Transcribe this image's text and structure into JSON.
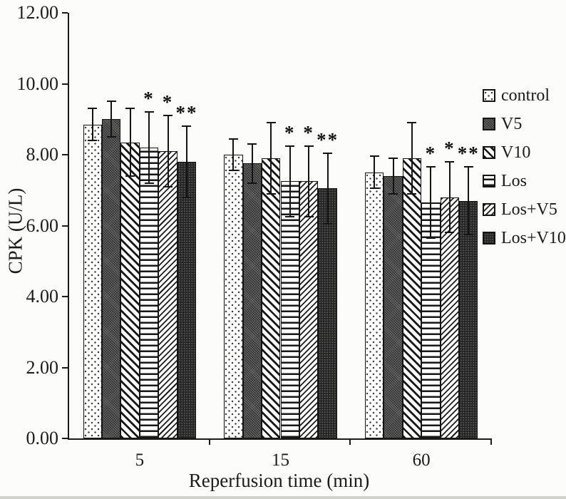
{
  "figure": {
    "background": "#fcfcfa",
    "text_color": "#1b1b1b",
    "axis_color": "#1b1b1b",
    "bar_outline_color": "#141414"
  },
  "chart_data": {
    "type": "bar",
    "title": "",
    "xlabel": "Reperfusion time (min)",
    "ylabel": "CPK (U/L)",
    "ylim": [
      0,
      12
    ],
    "ytick_values": [
      0,
      2,
      4,
      6,
      8,
      10,
      12
    ],
    "ytick_labels": [
      "0.00",
      "2.00",
      "4.00",
      "6.00",
      "8.00",
      "10.00",
      "12.00"
    ],
    "categories": [
      "5",
      "15",
      "60"
    ],
    "grid": false,
    "legend_position": "right",
    "error_bars": true,
    "series": [
      {
        "name": "control",
        "pattern": "dots",
        "values": [
          8.85,
          8.0,
          7.5
        ],
        "errors": [
          0.45,
          0.45,
          0.45
        ],
        "sig": [
          "",
          "",
          ""
        ]
      },
      {
        "name": "V5",
        "pattern": "dark-fine",
        "values": [
          9.0,
          7.75,
          7.4
        ],
        "errors": [
          0.5,
          0.55,
          0.5
        ],
        "sig": [
          "",
          "",
          ""
        ]
      },
      {
        "name": "V10",
        "pattern": "diag-back",
        "values": [
          8.35,
          7.9,
          7.9
        ],
        "errors": [
          0.95,
          1.0,
          1.0
        ],
        "sig": [
          "",
          "",
          ""
        ]
      },
      {
        "name": "Los",
        "pattern": "h-lines",
        "values": [
          8.2,
          7.25,
          6.65
        ],
        "errors": [
          1.0,
          1.0,
          1.0
        ],
        "sig": [
          "*",
          "*",
          "*"
        ]
      },
      {
        "name": "Los+V5",
        "pattern": "diag-fwd",
        "values": [
          8.1,
          7.25,
          6.8
        ],
        "errors": [
          1.0,
          1.0,
          1.0
        ],
        "sig": [
          "*",
          "*",
          "*"
        ]
      },
      {
        "name": "Los+V10",
        "pattern": "dark-check",
        "values": [
          7.8,
          7.05,
          6.7
        ],
        "errors": [
          1.0,
          1.0,
          0.95
        ],
        "sig": [
          "**",
          "**",
          "**"
        ]
      }
    ]
  }
}
